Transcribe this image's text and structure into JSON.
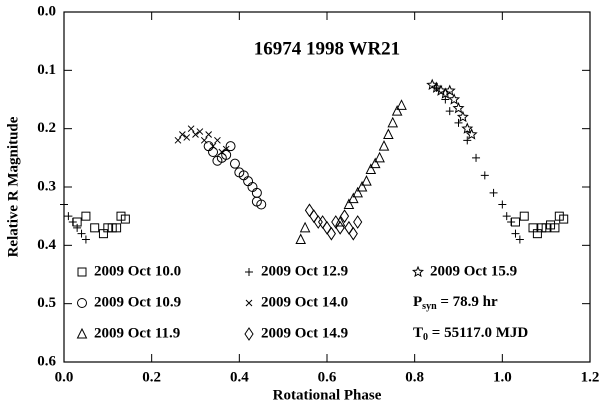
{
  "chart_data": {
    "type": "scatter",
    "title": "16974 1998 WR21",
    "x_label": "Rotational Phase",
    "y_label": "Relative R Magnitude",
    "xlim": [
      0,
      1.2
    ],
    "ylim": [
      0.6,
      0
    ],
    "xticks": [
      {
        "value": 0,
        "label": "0.0"
      },
      0.2,
      0.4,
      0.6,
      0.8,
      {
        "value": 1,
        "label": "1.0"
      },
      1.2
    ],
    "yticks": [
      {
        "value": 0,
        "label": "0.0"
      },
      0.1,
      0.2,
      0.3,
      0.4,
      0.5,
      0.6
    ],
    "series": [
      {
        "name": "2009 Oct 10.0",
        "marker": "square",
        "color": "#000000",
        "x": [
          0.03,
          0.05,
          0.07,
          0.09,
          0.1,
          0.11,
          0.12,
          0.13,
          0.14,
          1.03,
          1.05,
          1.07,
          1.08,
          1.09,
          1.1,
          1.11,
          1.12,
          1.13,
          1.14
        ],
        "values": [
          0.36,
          0.35,
          0.37,
          0.38,
          0.37,
          0.37,
          0.37,
          0.35,
          0.355,
          0.36,
          0.35,
          0.37,
          0.38,
          0.37,
          0.37,
          0.365,
          0.37,
          0.35,
          0.355
        ]
      },
      {
        "name": "2009 Oct 10.9",
        "marker": "circle",
        "color": "#000000",
        "x": [
          0.33,
          0.34,
          0.35,
          0.36,
          0.37,
          0.38,
          0.39,
          0.4,
          0.41,
          0.42,
          0.43,
          0.44,
          0.44,
          0.45
        ],
        "values": [
          0.23,
          0.24,
          0.255,
          0.25,
          0.245,
          0.23,
          0.26,
          0.275,
          0.28,
          0.29,
          0.3,
          0.31,
          0.325,
          0.33
        ]
      },
      {
        "name": "2009 Oct 11.9",
        "marker": "triangle",
        "color": "#000000",
        "x": [
          0.54,
          0.55,
          0.63,
          0.65,
          0.66,
          0.67,
          0.68,
          0.69,
          0.7,
          0.71,
          0.72,
          0.73,
          0.74,
          0.75,
          0.76,
          0.77
        ],
        "values": [
          0.39,
          0.37,
          0.36,
          0.33,
          0.32,
          0.31,
          0.3,
          0.29,
          0.27,
          0.26,
          0.25,
          0.23,
          0.21,
          0.19,
          0.17,
          0.16
        ]
      },
      {
        "name": "2009 Oct 12.9",
        "marker": "plus",
        "color": "#000000",
        "x": [
          0.0,
          0.01,
          0.02,
          0.03,
          0.04,
          0.05,
          0.85,
          0.87,
          0.88,
          0.9,
          0.92,
          0.94,
          0.96,
          0.98,
          1.0,
          1.01,
          1.02,
          1.03,
          1.04
        ],
        "values": [
          0.33,
          0.35,
          0.36,
          0.37,
          0.38,
          0.39,
          0.13,
          0.15,
          0.17,
          0.19,
          0.22,
          0.25,
          0.28,
          0.31,
          0.33,
          0.35,
          0.36,
          0.38,
          0.39
        ]
      },
      {
        "name": "2009 Oct 14.0",
        "marker": "cross",
        "color": "#000000",
        "x": [
          0.26,
          0.27,
          0.28,
          0.29,
          0.3,
          0.31,
          0.32,
          0.33,
          0.34,
          0.35,
          0.36,
          0.37
        ],
        "values": [
          0.22,
          0.21,
          0.215,
          0.2,
          0.21,
          0.205,
          0.22,
          0.21,
          0.23,
          0.22,
          0.24,
          0.235
        ]
      },
      {
        "name": "2009 Oct 14.9",
        "marker": "diamond",
        "color": "#000000",
        "x": [
          0.56,
          0.57,
          0.58,
          0.59,
          0.6,
          0.61,
          0.62,
          0.63,
          0.64,
          0.65,
          0.66,
          0.67
        ],
        "values": [
          0.34,
          0.35,
          0.36,
          0.36,
          0.37,
          0.38,
          0.36,
          0.37,
          0.35,
          0.37,
          0.38,
          0.36
        ]
      },
      {
        "name": "2009 Oct 15.9",
        "marker": "star",
        "color": "#000000",
        "x": [
          0.84,
          0.85,
          0.86,
          0.87,
          0.88,
          0.89,
          0.9,
          0.91,
          0.92,
          0.93
        ],
        "values": [
          0.125,
          0.13,
          0.135,
          0.14,
          0.135,
          0.15,
          0.165,
          0.18,
          0.2,
          0.21
        ]
      }
    ],
    "annotations": [
      {
        "symbol": "P",
        "subscript": "syn",
        "text": " = 78.9 hr"
      },
      {
        "symbol": "T",
        "subscript": "0",
        "text": " = 55117.0 MJD"
      }
    ]
  }
}
